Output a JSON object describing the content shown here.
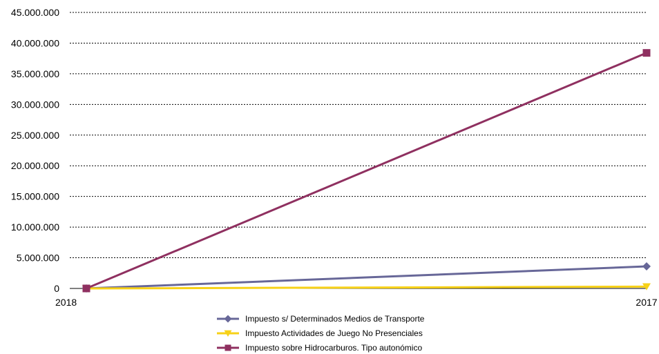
{
  "chart_data": {
    "type": "line",
    "x": [
      "2018",
      "2017"
    ],
    "ylim": [
      0,
      45000000
    ],
    "yticks": [
      0,
      5000000,
      10000000,
      15000000,
      20000000,
      25000000,
      30000000,
      35000000,
      40000000,
      45000000
    ],
    "ytick_labels": [
      "0",
      "5.000.000",
      "10.000.000",
      "15.000.000",
      "20.000.000",
      "25.000.000",
      "30.000.000",
      "35.000.000",
      "40.000.000",
      "45.000.000"
    ],
    "grid": true,
    "legend_position": "bottom",
    "series": [
      {
        "name": "Impuesto s/ Determinados Medios de Transporte",
        "values": [
          0,
          3600000
        ],
        "color": "#676798",
        "marker": "diamond"
      },
      {
        "name": "Impuesto Actividades de Juego No Presenciales",
        "values": [
          0,
          300000
        ],
        "color": "#F7D117",
        "marker": "triangle-down"
      },
      {
        "name": "Impuesto sobre Hidrocarburos. Tipo autonómico",
        "values": [
          0,
          38400000
        ],
        "color": "#8F3060",
        "marker": "square"
      }
    ]
  }
}
